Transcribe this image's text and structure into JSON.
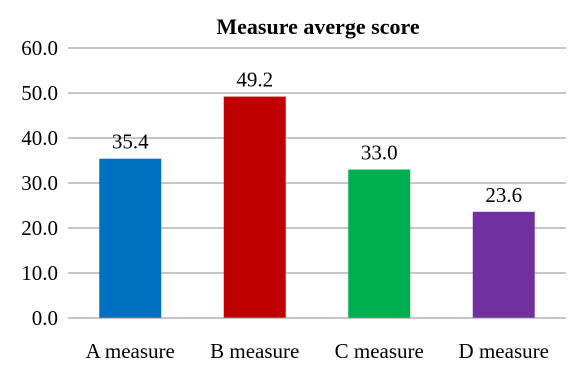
{
  "chart_data": {
    "type": "bar",
    "title": "Measure averge score",
    "categories": [
      "A measure",
      "B measure",
      "C measure",
      "D measure"
    ],
    "values": [
      35.4,
      49.2,
      33.0,
      23.6
    ],
    "value_labels": [
      "35.4",
      "49.2",
      "33.0",
      "23.6"
    ],
    "colors": [
      "#0070c0",
      "#c00000",
      "#00b050",
      "#7030a0"
    ],
    "ylim": [
      0,
      60
    ],
    "yticks": [
      0,
      10,
      20,
      30,
      40,
      50,
      60
    ],
    "ytick_labels": [
      "0.0",
      "10.0",
      "20.0",
      "30.0",
      "40.0",
      "50.0",
      "60.0"
    ],
    "grid": true,
    "legend": "none"
  }
}
